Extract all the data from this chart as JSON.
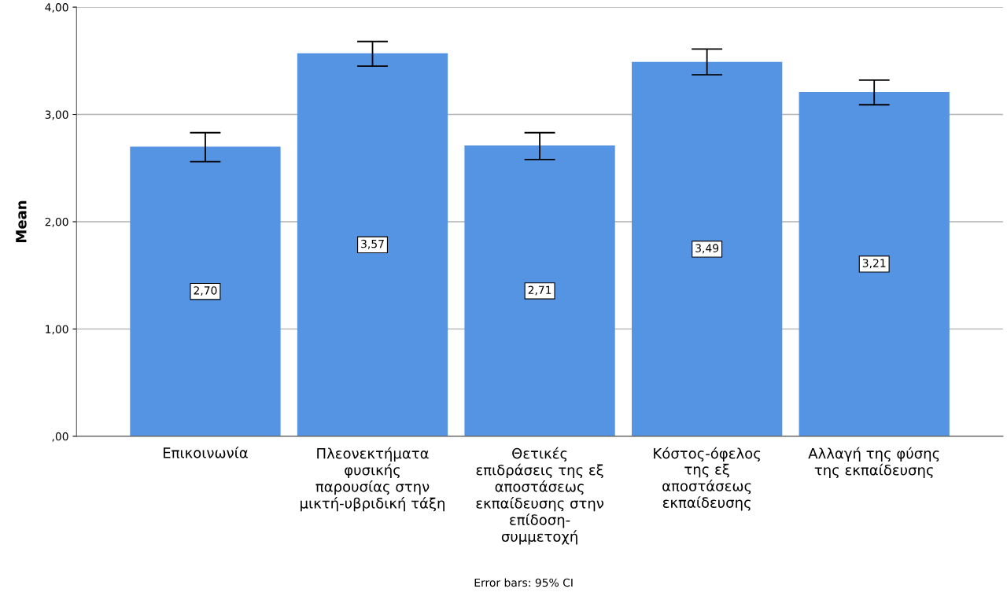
{
  "chart_data": {
    "type": "bar",
    "ylabel": "Mean",
    "categories": [
      "Επικοινωνία",
      "Πλεονεκτήματα\nφυσικής\nπαρουσίας στην\nμικτή-υβριδική τάξη",
      "Θετικές\nεπιδράσεις της εξ\nαποστάσεως\nεκπαίδευσης στην\nεπίδοση-\nσυμμετοχή",
      "Κόστος-όφελος\nτης εξ\nαποστάσεως\nεκπαίδευσης",
      "Αλλαγή της φύσης\nτης εκπαίδευσης"
    ],
    "values": [
      2.7,
      3.57,
      2.71,
      3.49,
      3.21
    ],
    "value_labels": [
      "2,70",
      "3,57",
      "2,71",
      "3,49",
      "3,21"
    ],
    "errors": [
      [
        2.56,
        2.83
      ],
      [
        3.45,
        3.68
      ],
      [
        2.58,
        2.83
      ],
      [
        3.37,
        3.61
      ],
      [
        3.09,
        3.32
      ]
    ],
    "color": "#5494e3",
    "ylim": [
      0,
      4
    ],
    "yticks": [
      {
        "value": 0,
        "label": ",00"
      },
      {
        "value": 1,
        "label": "1,00"
      },
      {
        "value": 2,
        "label": "2,00"
      },
      {
        "value": 3,
        "label": "3,00"
      },
      {
        "value": 4,
        "label": "4,00"
      }
    ],
    "grid": "y",
    "annotations": [
      "Error bars: 95% CI"
    ]
  }
}
